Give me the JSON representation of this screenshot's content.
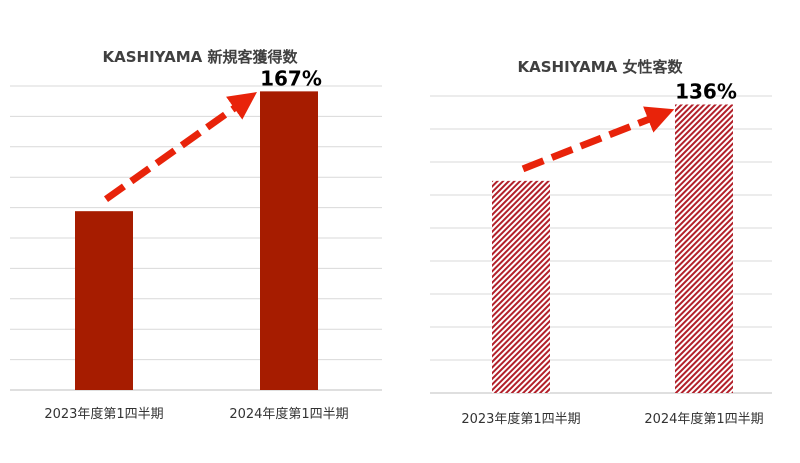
{
  "chart_data": [
    {
      "type": "bar",
      "title": "KASHIYAMA 新規客獲得数",
      "categories": [
        "2023年度第1四半期",
        "2024年度第1四半期"
      ],
      "values": [
        100,
        167
      ],
      "data_labels": [
        "",
        "167%"
      ],
      "ylim": [
        0,
        170
      ],
      "grid": true,
      "bar_color": "#A61C00",
      "bar_style": "solid",
      "arrow": true,
      "arrow_color": "#E8230A"
    },
    {
      "type": "bar",
      "title": "KASHIYAMA 女性客数",
      "categories": [
        "2023年度第1四半期",
        "2024年度第1四半期"
      ],
      "values": [
        100,
        136
      ],
      "data_labels": [
        "",
        "136%"
      ],
      "ylim": [
        0,
        140
      ],
      "grid": true,
      "bar_color": "#B2202A",
      "bar_style": "hatched",
      "arrow": true,
      "arrow_color": "#E8230A"
    }
  ]
}
